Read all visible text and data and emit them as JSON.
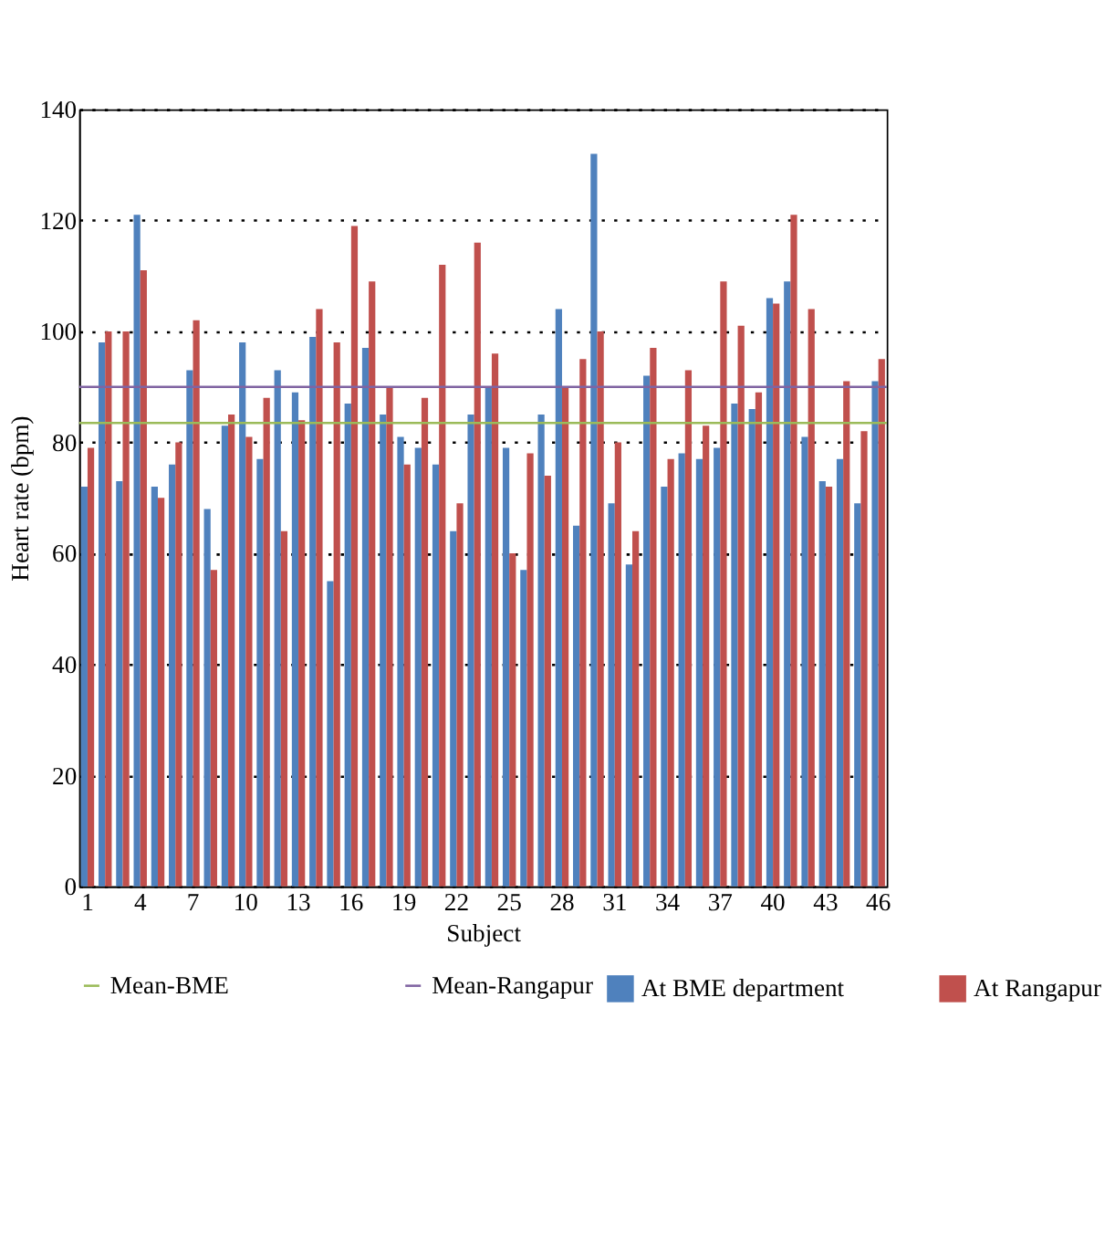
{
  "chart_data": {
    "type": "bar",
    "xlabel": "Subject",
    "ylabel": "Heart rate (bpm)",
    "categories": [
      "1",
      null,
      null,
      "4",
      null,
      null,
      "7",
      null,
      null,
      "10",
      null,
      null,
      "13",
      null,
      null,
      "16",
      null,
      null,
      "19",
      null,
      null,
      "22",
      null,
      null,
      "25",
      null,
      null,
      "28",
      null,
      null,
      "31",
      null,
      null,
      "34",
      null,
      null,
      "37",
      null,
      null,
      "40",
      null,
      null,
      "43",
      null,
      null,
      "46"
    ],
    "series": [
      {
        "name": "At BME department",
        "color": "#4f81bd",
        "values": [
          72,
          98,
          73,
          121,
          72,
          76,
          93,
          68,
          83,
          98,
          77,
          93,
          89,
          99,
          55,
          87,
          97,
          85,
          81,
          79,
          76,
          64,
          85,
          90,
          79,
          57,
          85,
          104,
          65,
          132,
          69,
          58,
          92,
          72,
          78,
          77,
          79,
          87,
          86,
          106,
          109,
          81,
          73,
          77,
          69,
          91
        ]
      },
      {
        "name": "At Rangapur",
        "color": "#c0504d",
        "values": [
          79,
          100,
          100,
          111,
          70,
          80,
          102,
          57,
          85,
          81,
          88,
          64,
          84,
          104,
          98,
          119,
          109,
          90,
          76,
          88,
          112,
          69,
          116,
          96,
          60,
          78,
          74,
          90,
          95,
          100,
          80,
          64,
          97,
          77,
          93,
          83,
          109,
          101,
          89,
          105,
          121,
          104,
          72,
          91,
          82,
          95
        ]
      }
    ],
    "ref_lines": [
      {
        "axis": "y",
        "value": 83.5,
        "label": "Mean-BME",
        "color": "#9bbb59"
      },
      {
        "axis": "y",
        "value": 90,
        "label": "Mean-Rangapur",
        "color": "#8064a2"
      }
    ],
    "ylim": [
      0,
      140
    ],
    "yticks": [
      0,
      20,
      40,
      60,
      80,
      100,
      120,
      140
    ],
    "grid": "y",
    "legend": "bottom"
  }
}
